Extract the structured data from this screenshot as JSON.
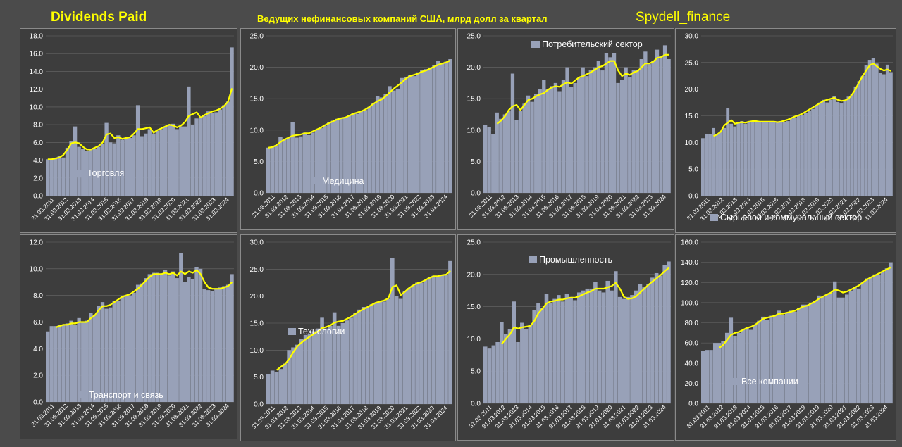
{
  "header": {
    "left": "Dividends Paid",
    "center": "Ведущих нефинансовых компаний США, млрд долл за квартал",
    "right": "Spydell_finance"
  },
  "colors": {
    "bar": "#98a1b8",
    "trend": "#ffff00",
    "panel_bg": "#3d3d3d",
    "grid": "#6a6a6a",
    "text": "#ffffff"
  },
  "x_labels": [
    "31.03.2011",
    "31.03.2012",
    "31.03.2013",
    "31.03.2014",
    "31.03.2015",
    "31.03.2016",
    "31.03.2017",
    "31.03.2018",
    "31.03.2019",
    "31.03.2020",
    "31.03.2021",
    "31.03.2022",
    "31.03.2023",
    "31.03.2024"
  ],
  "chart_data": [
    {
      "type": "bar",
      "title": "Торговля",
      "ylim": [
        0,
        18
      ],
      "yticks": [
        0,
        2,
        4,
        6,
        8,
        10,
        12,
        14,
        16,
        18
      ],
      "values": [
        4.1,
        4.0,
        4.2,
        4.5,
        4.3,
        5.4,
        6.1,
        7.8,
        5.5,
        5.3,
        5.0,
        5.2,
        5.3,
        5.5,
        5.8,
        8.2,
        6.0,
        5.9,
        6.8,
        6.3,
        6.5,
        6.5,
        6.8,
        10.2,
        6.7,
        7.0,
        7.5,
        7.0,
        7.3,
        7.5,
        7.8,
        8.0,
        8.1,
        7.5,
        7.8,
        7.8,
        12.3,
        8.0,
        8.7,
        8.9,
        9.0,
        9.5,
        9.3,
        9.4,
        9.7,
        10.2,
        10.6,
        16.7
      ],
      "trend": [
        4.1,
        4.1,
        4.2,
        4.3,
        4.6,
        5.2,
        5.9,
        6.0,
        5.9,
        5.5,
        5.2,
        5.2,
        5.4,
        5.6,
        6.0,
        6.9,
        7.0,
        6.5,
        6.6,
        6.4,
        6.5,
        6.6,
        7.0,
        7.5,
        7.5,
        7.6,
        7.7,
        7.1,
        7.4,
        7.6,
        7.8,
        8.0,
        7.9,
        7.7,
        7.9,
        8.3,
        9.0,
        9.2,
        9.4,
        8.8,
        9.1,
        9.3,
        9.5,
        9.6,
        9.8,
        10.1,
        10.6,
        12.1
      ]
    },
    {
      "type": "bar",
      "title": "Медицина",
      "ylim": [
        0,
        25
      ],
      "yticks": [
        0,
        5,
        10,
        15,
        20,
        25
      ],
      "values": [
        7.2,
        7.3,
        7.5,
        8.9,
        8.5,
        8.8,
        11.3,
        8.8,
        9.0,
        9.6,
        9.2,
        9.6,
        10.0,
        10.3,
        10.7,
        11.2,
        11.5,
        11.8,
        12.0,
        12.0,
        12.4,
        12.7,
        12.6,
        13.0,
        13.2,
        13.7,
        14.3,
        15.4,
        15.2,
        15.8,
        17.0,
        16.3,
        16.6,
        18.3,
        18.5,
        18.7,
        18.6,
        19.2,
        19.5,
        19.7,
        19.9,
        20.4,
        21.0,
        20.6,
        20.9,
        21.3
      ],
      "trend": [
        7.2,
        7.3,
        7.6,
        8.1,
        8.5,
        8.8,
        9.1,
        9.2,
        9.3,
        9.5,
        9.5,
        9.8,
        10.1,
        10.4,
        10.8,
        11.1,
        11.4,
        11.7,
        11.9,
        12.0,
        12.3,
        12.6,
        12.8,
        13.0,
        13.3,
        13.7,
        14.2,
        14.6,
        14.9,
        15.4,
        16.0,
        16.6,
        17.1,
        17.6,
        18.2,
        18.6,
        18.8,
        19.0,
        19.3,
        19.5,
        19.8,
        20.1,
        20.4,
        20.6,
        20.8,
        21.1
      ]
    },
    {
      "type": "bar",
      "title": "Потребительский сектор",
      "ylim": [
        0,
        25
      ],
      "yticks": [
        0,
        5,
        10,
        15,
        20,
        25
      ],
      "values": [
        10.8,
        10.5,
        9.4,
        12.8,
        11.8,
        12.5,
        13.0,
        19.0,
        11.6,
        13.0,
        14.2,
        15.5,
        14.5,
        15.7,
        16.5,
        18.0,
        16.5,
        17.0,
        17.5,
        16.2,
        18.0,
        20.0,
        16.9,
        17.5,
        18.3,
        20.0,
        18.6,
        19.5,
        20.0,
        21.0,
        19.5,
        22.3,
        21.6,
        22.2,
        17.5,
        18.0,
        20.0,
        18.5,
        19.5,
        19.6,
        21.3,
        22.5,
        20.5,
        21.0,
        22.8,
        21.8,
        23.5,
        21.3
      ],
      "trend": [
        null,
        null,
        null,
        11.0,
        11.5,
        12.2,
        13.2,
        13.8,
        14.0,
        13.2,
        14.0,
        14.8,
        15.0,
        15.4,
        15.7,
        15.9,
        16.4,
        16.8,
        17.0,
        16.9,
        17.3,
        17.6,
        17.4,
        17.9,
        18.4,
        18.6,
        18.9,
        19.2,
        19.6,
        20.0,
        20.2,
        20.6,
        21.0,
        21.0,
        19.5,
        18.6,
        19.0,
        18.8,
        19.2,
        19.4,
        20.0,
        20.6,
        20.6,
        20.9,
        21.5,
        21.6,
        22.0,
        22.0
      ]
    },
    {
      "type": "bar",
      "title": "Сырьевой и коммунальный сектор",
      "ylim": [
        0,
        30
      ],
      "yticks": [
        0,
        5,
        10,
        15,
        20,
        25,
        30
      ],
      "values": [
        10.8,
        11.5,
        11.5,
        12.7,
        11.5,
        12.0,
        12.7,
        16.5,
        13.5,
        13.0,
        13.7,
        14.0,
        13.5,
        13.8,
        13.8,
        14.0,
        13.8,
        13.8,
        14.0,
        14.0,
        13.8,
        13.7,
        13.8,
        13.8,
        14.0,
        14.5,
        14.7,
        15.0,
        15.2,
        15.5,
        16.0,
        16.3,
        17.0,
        17.5,
        18.0,
        17.5,
        18.0,
        18.7,
        17.6,
        17.4,
        17.8,
        18.6,
        19.0,
        20.5,
        21.5,
        22.5,
        24.5,
        25.5,
        25.8,
        24.8,
        23.0,
        22.8,
        24.6,
        23.2
      ],
      "trend": [
        null,
        null,
        null,
        11.2,
        11.5,
        12.0,
        13.2,
        13.7,
        14.2,
        13.5,
        13.7,
        13.8,
        13.7,
        13.9,
        14.0,
        14.0,
        13.9,
        13.9,
        13.9,
        13.9,
        13.9,
        13.8,
        13.9,
        14.1,
        14.3,
        14.6,
        14.9,
        15.1,
        15.4,
        15.8,
        16.2,
        16.6,
        17.0,
        17.4,
        17.8,
        18.0,
        18.2,
        18.4,
        18.0,
        17.8,
        17.9,
        18.2,
        19.0,
        20.0,
        21.3,
        22.5,
        23.5,
        24.5,
        24.8,
        24.3,
        23.8,
        23.5,
        23.7,
        23.4
      ]
    },
    {
      "type": "bar",
      "title": "Транспорт и связь",
      "ylim": [
        0,
        12
      ],
      "yticks": [
        0,
        2,
        4,
        6,
        8,
        10,
        12
      ],
      "values": [
        5.3,
        5.7,
        5.7,
        5.8,
        5.8,
        5.9,
        6.1,
        5.8,
        6.3,
        6.0,
        6.1,
        6.7,
        6.5,
        7.2,
        7.5,
        7.0,
        7.1,
        7.6,
        7.6,
        7.9,
        8.0,
        8.0,
        8.2,
        8.8,
        8.9,
        9.3,
        9.6,
        9.7,
        9.7,
        9.6,
        9.9,
        9.5,
        9.8,
        9.3,
        11.2,
        9.0,
        9.4,
        9.2,
        10.1,
        10.0,
        8.5,
        8.4,
        8.3,
        8.5,
        8.6,
        8.7,
        8.8,
        9.6
      ],
      "trend": [
        null,
        null,
        5.6,
        5.7,
        5.8,
        5.8,
        5.9,
        5.9,
        6.0,
        6.0,
        6.0,
        6.3,
        6.5,
        6.9,
        7.2,
        7.2,
        7.3,
        7.5,
        7.7,
        7.9,
        8.0,
        8.1,
        8.3,
        8.5,
        8.8,
        9.1,
        9.4,
        9.6,
        9.6,
        9.6,
        9.7,
        9.6,
        9.7,
        9.5,
        9.8,
        9.6,
        9.8,
        9.7,
        9.9,
        9.6,
        9.0,
        8.6,
        8.5,
        8.5,
        8.5,
        8.6,
        8.7,
        9.0
      ]
    },
    {
      "type": "bar",
      "title": "Технологии",
      "ylim": [
        0,
        30
      ],
      "yticks": [
        0,
        5,
        10,
        15,
        20,
        25,
        30
      ],
      "values": [
        5.5,
        6.2,
        6.0,
        6.5,
        7.5,
        10.0,
        10.5,
        11.0,
        12.0,
        12.8,
        13.0,
        13.5,
        14.0,
        16.0,
        14.0,
        14.5,
        17.0,
        14.5,
        15.0,
        15.5,
        16.0,
        16.8,
        17.5,
        18.0,
        18.0,
        18.5,
        18.8,
        19.0,
        19.0,
        19.5,
        27.0,
        20.0,
        19.5,
        21.0,
        21.5,
        22.0,
        22.5,
        22.5,
        23.0,
        23.5,
        23.8,
        23.5,
        24.0,
        24.0,
        26.5
      ],
      "trend": [
        null,
        null,
        6.3,
        6.9,
        7.4,
        8.3,
        9.6,
        10.7,
        11.4,
        12.0,
        12.5,
        13.0,
        13.5,
        14.1,
        14.3,
        14.6,
        15.1,
        15.3,
        15.4,
        15.8,
        16.2,
        16.7,
        17.2,
        17.6,
        18.0,
        18.4,
        18.8,
        19.0,
        19.2,
        19.6,
        21.7,
        22.0,
        20.2,
        20.8,
        21.5,
        22.0,
        22.4,
        22.6,
        23.0,
        23.4,
        23.7,
        23.7,
        23.9,
        24.0,
        24.7
      ]
    },
    {
      "type": "bar",
      "title": "Промышленность",
      "ylim": [
        0,
        25
      ],
      "yticks": [
        0,
        5,
        10,
        15,
        20,
        25
      ],
      "values": [
        8.8,
        8.5,
        9.0,
        9.5,
        12.6,
        10.8,
        11.5,
        15.8,
        9.5,
        12.5,
        11.5,
        12.2,
        14.5,
        15.5,
        14.8,
        17.0,
        15.5,
        16.2,
        16.8,
        15.8,
        17.0,
        16.5,
        16.0,
        17.2,
        17.5,
        17.8,
        17.8,
        18.8,
        17.5,
        17.2,
        19.0,
        17.5,
        20.5,
        16.5,
        16.2,
        16.5,
        16.8,
        17.5,
        18.5,
        18.0,
        18.5,
        19.5,
        20.2,
        19.8,
        21.5,
        22.0
      ],
      "trend": [
        null,
        null,
        null,
        null,
        9.2,
        10.0,
        10.7,
        11.8,
        11.6,
        11.8,
        11.9,
        12.0,
        12.8,
        14.0,
        14.7,
        15.5,
        15.8,
        15.9,
        16.1,
        16.1,
        16.3,
        16.4,
        16.4,
        16.6,
        16.9,
        17.2,
        17.4,
        17.8,
        17.8,
        17.8,
        18.0,
        18.2,
        18.7,
        17.8,
        16.5,
        16.2,
        16.3,
        16.6,
        17.2,
        17.8,
        18.4,
        18.9,
        19.4,
        19.9,
        20.5,
        21.0
      ]
    },
    {
      "type": "bar",
      "title": "Все компании",
      "ylim": [
        0,
        160
      ],
      "yticks": [
        0,
        20,
        40,
        60,
        80,
        100,
        120,
        140,
        160
      ],
      "values": [
        52,
        53,
        53,
        60,
        60,
        62,
        70,
        85,
        67,
        70,
        73,
        75,
        73,
        78,
        82,
        86,
        83,
        87,
        88,
        92,
        88,
        90,
        92,
        91,
        95,
        98,
        98,
        100,
        102,
        107,
        106,
        108,
        110,
        121,
        105,
        105,
        108,
        112,
        115,
        114,
        120,
        124,
        125,
        128,
        128,
        130,
        134,
        140
      ],
      "trend": [
        null,
        null,
        null,
        null,
        55,
        58,
        63,
        68,
        70,
        71,
        73,
        75,
        76,
        78,
        81,
        84,
        85,
        86,
        87,
        89,
        89,
        90,
        91,
        92,
        94,
        96,
        97,
        99,
        101,
        104,
        106,
        108,
        110,
        113,
        112,
        110,
        111,
        113,
        115,
        117,
        120,
        123,
        125,
        127,
        129,
        131,
        133,
        135
      ]
    }
  ]
}
